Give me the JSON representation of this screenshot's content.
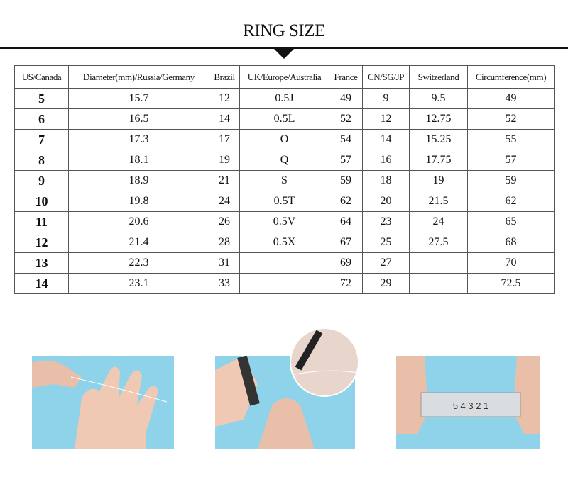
{
  "title": "RING SIZE",
  "headers": [
    "US/Canada",
    "Diameter(mm)/Russia/Germany",
    "Brazil",
    "UK/Europe/Australia",
    "France",
    "CN/SG/JP",
    "Switzerland",
    "Circumference(mm)"
  ],
  "rows": [
    [
      "5",
      "15.7",
      "12",
      "0.5J",
      "49",
      "9",
      "9.5",
      "49"
    ],
    [
      "6",
      "16.5",
      "14",
      "0.5L",
      "52",
      "12",
      "12.75",
      "52"
    ],
    [
      "7",
      "17.3",
      "17",
      "O",
      "54",
      "14",
      "15.25",
      "55"
    ],
    [
      "8",
      "18.1",
      "19",
      "Q",
      "57",
      "16",
      "17.75",
      "57"
    ],
    [
      "9",
      "18.9",
      "21",
      "S",
      "59",
      "18",
      "19",
      "59"
    ],
    [
      "10",
      "19.8",
      "24",
      "0.5T",
      "62",
      "20",
      "21.5",
      "62"
    ],
    [
      "11",
      "20.6",
      "26",
      "0.5V",
      "64",
      "23",
      "24",
      "65"
    ],
    [
      "12",
      "21.4",
      "28",
      "0.5X",
      "67",
      "25",
      "27.5",
      "68"
    ],
    [
      "13",
      "22.3",
      "31",
      "",
      "69",
      "27",
      "",
      "70"
    ],
    [
      "14",
      "23.1",
      "33",
      "",
      "72",
      "29",
      "",
      "72.5"
    ]
  ],
  "ruler_text": "5 4 3 2 1",
  "colors": {
    "photo_bg": "#8ed3ea",
    "skin": "#f0c9b5"
  }
}
